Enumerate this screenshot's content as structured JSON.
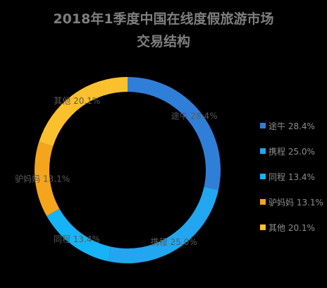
{
  "chart_data": {
    "type": "pie",
    "variant": "doughnut",
    "title_line1": "2018年1季度中国在线度假旅游市场",
    "title_line2": "交易结构",
    "categories": [
      "途牛",
      "携程",
      "同程",
      "驴妈妈",
      "其他"
    ],
    "values": [
      28.4,
      25.0,
      13.4,
      13.1,
      20.1
    ],
    "labels": [
      "途牛 28.4%",
      "携程 25.0%",
      "同程 13.4%",
      "驴妈妈 13.1%",
      "其他 20.1%"
    ],
    "colors": [
      "#2f7fd9",
      "#22a6f0",
      "#16b4f7",
      "#f5a51c",
      "#fbc02d"
    ],
    "legend_position": "right"
  }
}
